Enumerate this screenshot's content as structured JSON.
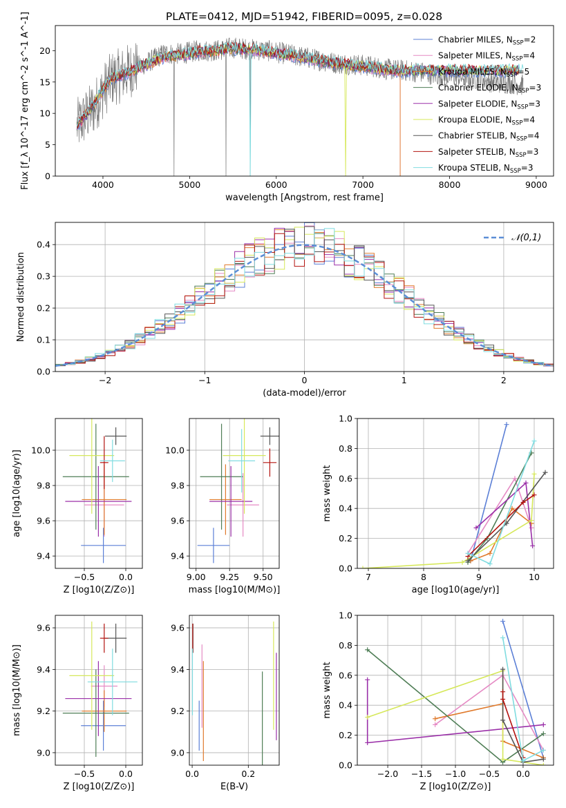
{
  "title": "PLATE=0412, MJD=51942, FIBERID=0095, z=0.028",
  "colors": {
    "Chabrier MILES": "#5b7fd6",
    "Salpeter MILES": "#e58ac4",
    "Kroupa MILES": "#e07a2c",
    "Chabrier ELODIE": "#4e7d55",
    "Salpeter ELODIE": "#9a2fa8",
    "Kroupa ELODIE": "#d6e85a",
    "Chabrier STELIB": "#555555",
    "Salpeter STELIB": "#b3120e",
    "Kroupa STELIB": "#7fdce0"
  },
  "chart_data": [
    {
      "id": "spectrum",
      "type": "line",
      "xlabel": "wavelength [Angstrom, rest frame]",
      "ylabel": "Flux [f_λ 10^-17 erg cm^-2 s^-1 A^-1]",
      "xlim": [
        3450,
        9200
      ],
      "ylim": [
        0,
        24
      ],
      "xticks": [
        4000,
        5000,
        6000,
        7000,
        8000,
        9000
      ],
      "yticks": [
        0,
        5,
        10,
        15,
        20
      ],
      "legend_position": "top-right",
      "legend": [
        {
          "name": "Chabrier MILES",
          "nssp": "2"
        },
        {
          "name": "Salpeter MILES",
          "nssp": "4"
        },
        {
          "name": "Kroupa MILES",
          "nssp": "5"
        },
        {
          "name": "Chabrier ELODIE",
          "nssp": "3"
        },
        {
          "name": "Salpeter ELODIE",
          "nssp": "3"
        },
        {
          "name": "Kroupa ELODIE",
          "nssp": "4"
        },
        {
          "name": "Chabrier STELIB",
          "nssp": "4"
        },
        {
          "name": "Salpeter STELIB",
          "nssp": "3"
        },
        {
          "name": "Kroupa STELIB",
          "nssp": "3"
        }
      ],
      "data_continuum": {
        "x": [
          3700,
          3800,
          3900,
          4000,
          4100,
          4200,
          4300,
          4400,
          4500,
          4700,
          4900,
          5100,
          5300,
          5500,
          5700,
          5900,
          6100,
          6300,
          6500,
          6700,
          6900,
          7100,
          7300,
          7500,
          7700,
          7900,
          8100,
          8300,
          8500,
          8700,
          8850
        ],
        "y": [
          8,
          9.5,
          11,
          13.5,
          15.5,
          16,
          16.8,
          17.5,
          18,
          19.5,
          19.5,
          20,
          20,
          20.5,
          20.2,
          20,
          19.5,
          19,
          18.5,
          18,
          17.8,
          17.5,
          17,
          16.8,
          16.5,
          16,
          15.8,
          15.5,
          15,
          14.8,
          14.5
        ]
      },
      "model_continuum": {
        "x": [
          3700,
          3800,
          3900,
          4000,
          4100,
          4200,
          4300,
          4400,
          4500,
          4700,
          4900,
          5100,
          5300,
          5500,
          5700,
          5900,
          6100,
          6300,
          6500,
          6700,
          6900,
          7100,
          7300,
          7430
        ],
        "y": [
          8,
          9.8,
          11.5,
          13.8,
          15.6,
          16,
          16.5,
          17.3,
          17.8,
          19,
          19.3,
          19.8,
          20,
          20.3,
          20.2,
          19.8,
          19.4,
          18.9,
          18.4,
          18,
          17.6,
          17.3,
          16.9,
          16.8
        ]
      }
    },
    {
      "id": "residuals",
      "type": "line",
      "xlabel": "(data-model)/error",
      "ylabel": "Normed distribution",
      "xlim": [
        -2.5,
        2.5
      ],
      "ylim": [
        0,
        0.47
      ],
      "xticks": [
        -2,
        -1,
        0,
        1,
        2
      ],
      "yticks": [
        0.0,
        0.1,
        0.2,
        0.3,
        0.4
      ],
      "grid": true,
      "legend_position": "top-right",
      "normal_curve": {
        "name": "𝒩(0,1)",
        "mean": 0,
        "sigma": 1
      },
      "bin_edges": [
        -2.5,
        2.5
      ],
      "nbins": 50
    },
    {
      "id": "age-vs-Z",
      "type": "scatter",
      "xlabel": "Z [log10(Z/Z⊙)]",
      "ylabel": "age  [log10(age/yr)]",
      "xlim": [
        -0.85,
        0.2
      ],
      "ylim": [
        9.33,
        10.18
      ],
      "xticks": [
        -0.5,
        0.0
      ],
      "yticks": [
        9.4,
        9.6,
        9.8,
        10.0
      ],
      "grid": true,
      "points": [
        {
          "model": "Chabrier MILES",
          "x": -0.27,
          "y": 9.46,
          "xerr": 0.27,
          "yerr": 0.1
        },
        {
          "model": "Salpeter MILES",
          "x": -0.26,
          "y": 9.69,
          "xerr": 0.24,
          "yerr": 0.18
        },
        {
          "model": "Kroupa MILES",
          "x": -0.26,
          "y": 9.72,
          "xerr": 0.27,
          "yerr": 0.2
        },
        {
          "model": "Chabrier ELODIE",
          "x": -0.36,
          "y": 9.85,
          "xerr": 0.4,
          "yerr": 0.3
        },
        {
          "model": "Salpeter ELODIE",
          "x": -0.33,
          "y": 9.71,
          "xerr": 0.4,
          "yerr": 0.2
        },
        {
          "model": "Kroupa ELODIE",
          "x": -0.41,
          "y": 9.97,
          "xerr": 0.27,
          "yerr": 0.33
        },
        {
          "model": "Chabrier STELIB",
          "x": -0.12,
          "y": 10.08,
          "xerr": 0.13,
          "yerr": 0.05
        },
        {
          "model": "Salpeter STELIB",
          "x": -0.26,
          "y": 9.93,
          "xerr": 0.05,
          "yerr": 0.15
        },
        {
          "model": "Kroupa STELIB",
          "x": -0.16,
          "y": 9.94,
          "xerr": 0.15,
          "yerr": 0.12
        }
      ]
    },
    {
      "id": "age-vs-mass",
      "type": "scatter",
      "xlabel": "mass [log10(M/M⊙)]",
      "ylabel": "",
      "xlim": [
        8.95,
        9.62
      ],
      "ylim": [
        9.33,
        10.18
      ],
      "xticks": [
        9.0,
        9.25,
        9.5
      ],
      "yticks": [
        9.4,
        9.6,
        9.8,
        10.0
      ],
      "grid": true,
      "points": [
        {
          "model": "Chabrier MILES",
          "x": 9.13,
          "y": 9.46,
          "xerr": 0.12,
          "yerr": 0.1
        },
        {
          "model": "Salpeter MILES",
          "x": 9.35,
          "y": 9.69,
          "xerr": 0.12,
          "yerr": 0.18
        },
        {
          "model": "Kroupa MILES",
          "x": 9.22,
          "y": 9.72,
          "xerr": 0.12,
          "yerr": 0.2
        },
        {
          "model": "Chabrier ELODIE",
          "x": 9.19,
          "y": 9.85,
          "xerr": 0.16,
          "yerr": 0.3
        },
        {
          "model": "Salpeter ELODIE",
          "x": 9.26,
          "y": 9.71,
          "xerr": 0.16,
          "yerr": 0.2
        },
        {
          "model": "Kroupa ELODIE",
          "x": 9.36,
          "y": 9.97,
          "xerr": 0.16,
          "yerr": 0.33
        },
        {
          "model": "Chabrier STELIB",
          "x": 9.55,
          "y": 10.08,
          "xerr": 0.07,
          "yerr": 0.05
        },
        {
          "model": "Salpeter STELIB",
          "x": 9.55,
          "y": 9.93,
          "xerr": 0.05,
          "yerr": 0.08
        },
        {
          "model": "Kroupa STELIB",
          "x": 9.34,
          "y": 9.94,
          "xerr": 0.1,
          "yerr": 0.18
        }
      ]
    },
    {
      "id": "weight-vs-age",
      "type": "line",
      "xlabel": "age  [log10(age/yr)]",
      "ylabel": "mass weight",
      "xlim": [
        6.8,
        10.35
      ],
      "ylim": [
        0,
        1
      ],
      "xticks": [
        7,
        8,
        9,
        10
      ],
      "yticks": [
        0.0,
        0.2,
        0.4,
        0.6,
        0.8,
        1.0
      ],
      "grid": true,
      "series": [
        {
          "model": "Chabrier MILES",
          "x": [
            8.85,
            9.5
          ],
          "y": [
            0.05,
            0.96
          ]
        },
        {
          "model": "Salpeter MILES",
          "x": [
            8.8,
            9.65,
            9.95
          ],
          "y": [
            0.1,
            0.6,
            0.27
          ]
        },
        {
          "model": "Kroupa MILES",
          "x": [
            8.85,
            9.2,
            9.6,
            9.95
          ],
          "y": [
            0.05,
            0.1,
            0.4,
            0.3
          ]
        },
        {
          "model": "Chabrier ELODIE",
          "x": [
            8.8,
            9.15,
            9.95
          ],
          "y": [
            0.04,
            0.2,
            0.77
          ]
        },
        {
          "model": "Salpeter ELODIE",
          "x": [
            8.95,
            9.85,
            9.97
          ],
          "y": [
            0.27,
            0.57,
            0.15
          ]
        },
        {
          "model": "Kroupa ELODIE",
          "x": [
            6.9,
            8.7,
            9.95,
            10.0
          ],
          "y": [
            0.0,
            0.04,
            0.32,
            0.63
          ]
        },
        {
          "model": "Chabrier STELIB",
          "x": [
            8.8,
            9.5,
            10.2
          ],
          "y": [
            0.05,
            0.3,
            0.64
          ]
        },
        {
          "model": "Salpeter STELIB",
          "x": [
            8.8,
            9.8,
            10.0
          ],
          "y": [
            0.08,
            0.44,
            0.49
          ]
        },
        {
          "model": "Kroupa STELIB",
          "x": [
            8.8,
            9.2,
            10.0
          ],
          "y": [
            0.1,
            0.03,
            0.85
          ]
        }
      ]
    },
    {
      "id": "mass-vs-Z",
      "type": "scatter",
      "xlabel": "Z [log10(Z/Z⊙)]",
      "ylabel": "mass [log10(M/M⊙)]",
      "xlim": [
        -0.85,
        0.2
      ],
      "ylim": [
        8.94,
        9.66
      ],
      "xticks": [
        -0.5,
        0.0
      ],
      "yticks": [
        9.0,
        9.2,
        9.4,
        9.6
      ],
      "grid": true,
      "points": [
        {
          "model": "Chabrier MILES",
          "x": -0.27,
          "y": 9.13,
          "xerr": 0.27,
          "yerr": 0.12
        },
        {
          "model": "Salpeter MILES",
          "x": -0.26,
          "y": 9.32,
          "xerr": 0.16,
          "yerr": 0.1
        },
        {
          "model": "Kroupa MILES",
          "x": -0.26,
          "y": 9.2,
          "xerr": 0.27,
          "yerr": 0.1
        },
        {
          "model": "Chabrier ELODIE",
          "x": -0.36,
          "y": 9.19,
          "xerr": 0.4,
          "yerr": 0.21
        },
        {
          "model": "Salpeter ELODIE",
          "x": -0.33,
          "y": 9.26,
          "xerr": 0.4,
          "yerr": 0.18
        },
        {
          "model": "Kroupa ELODIE",
          "x": -0.41,
          "y": 9.37,
          "xerr": 0.27,
          "yerr": 0.26
        },
        {
          "model": "Chabrier STELIB",
          "x": -0.12,
          "y": 9.55,
          "xerr": 0.13,
          "yerr": 0.07
        },
        {
          "model": "Salpeter STELIB",
          "x": -0.26,
          "y": 9.55,
          "xerr": 0.05,
          "yerr": 0.07
        },
        {
          "model": "Kroupa STELIB",
          "x": -0.16,
          "y": 9.34,
          "xerr": 0.3,
          "yerr": 0.16
        }
      ]
    },
    {
      "id": "mass-vs-ebv",
      "type": "scatter",
      "xlabel": "E(B-V)",
      "ylabel": "",
      "xlim": [
        -0.01,
        0.31
      ],
      "ylim": [
        8.94,
        9.66
      ],
      "xticks": [
        0.0,
        0.2
      ],
      "yticks": [
        9.0,
        9.2,
        9.4,
        9.6
      ],
      "grid": true,
      "points": [
        {
          "model": "Chabrier MILES",
          "x": 0.025,
          "y": 9.13,
          "xerr": 0,
          "yerr": 0.12
        },
        {
          "model": "Salpeter MILES",
          "x": 0.035,
          "y": 9.32,
          "xerr": 0,
          "yerr": 0.2
        },
        {
          "model": "Kroupa MILES",
          "x": 0.04,
          "y": 9.2,
          "xerr": 0,
          "yerr": 0.24
        },
        {
          "model": "Chabrier ELODIE",
          "x": 0.25,
          "y": 9.12,
          "xerr": 0,
          "yerr": 0.27
        },
        {
          "model": "Salpeter ELODIE",
          "x": 0.3,
          "y": 9.27,
          "xerr": 0,
          "yerr": 0.21
        },
        {
          "model": "Kroupa ELODIE",
          "x": 0.29,
          "y": 9.37,
          "xerr": 0,
          "yerr": 0.26
        },
        {
          "model": "Chabrier STELIB",
          "x": 0.003,
          "y": 9.55,
          "xerr": 0,
          "yerr": 0.07
        },
        {
          "model": "Salpeter STELIB",
          "x": 0.002,
          "y": 9.55,
          "xerr": 0,
          "yerr": 0.07
        },
        {
          "model": "Kroupa STELIB",
          "x": 0.001,
          "y": 9.34,
          "xerr": 0,
          "yerr": 0.16
        }
      ]
    },
    {
      "id": "weight-vs-Z",
      "type": "line",
      "xlabel": "Z [log10(Z/Z⊙)]",
      "ylabel": "mass weight",
      "xlim": [
        -2.45,
        0.45
      ],
      "ylim": [
        0,
        1
      ],
      "xticks": [
        -2.0,
        -1.5,
        -1.0,
        -0.5,
        0.0
      ],
      "yticks": [
        0.0,
        0.2,
        0.4,
        0.6,
        0.8,
        1.0
      ],
      "grid": true,
      "series": [
        {
          "model": "Chabrier MILES",
          "x": [
            -0.3,
            0.3
          ],
          "y": [
            0.96,
            0.05
          ]
        },
        {
          "model": "Salpeter MILES",
          "x": [
            -1.3,
            -0.3,
            0.3
          ],
          "y": [
            0.27,
            0.6,
            0.1
          ]
        },
        {
          "model": "Kroupa MILES",
          "x": [
            -1.3,
            -0.3,
            -0.3,
            0.3
          ],
          "y": [
            0.31,
            0.41,
            0.16,
            0.05
          ]
        },
        {
          "model": "Chabrier ELODIE",
          "x": [
            -2.3,
            -0.3,
            0.3
          ],
          "y": [
            0.77,
            0.02,
            0.21
          ]
        },
        {
          "model": "Salpeter ELODIE",
          "x": [
            -2.3,
            -2.3,
            0.3
          ],
          "y": [
            0.57,
            0.15,
            0.27
          ]
        },
        {
          "model": "Kroupa ELODIE",
          "x": [
            -2.3,
            -0.3,
            -0.3,
            0.3
          ],
          "y": [
            0.32,
            0.63,
            0.04,
            0.0
          ]
        },
        {
          "model": "Chabrier STELIB",
          "x": [
            -0.3,
            -0.3,
            0.0,
            0.3
          ],
          "y": [
            0.64,
            0.3,
            0.02,
            0.04
          ]
        },
        {
          "model": "Salpeter STELIB",
          "x": [
            -0.3,
            -0.3,
            0.0
          ],
          "y": [
            0.49,
            0.44,
            0.05
          ]
        },
        {
          "model": "Kroupa STELIB",
          "x": [
            -0.3,
            0.0,
            0.3
          ],
          "y": [
            0.85,
            0.03,
            0.1
          ]
        }
      ]
    }
  ]
}
